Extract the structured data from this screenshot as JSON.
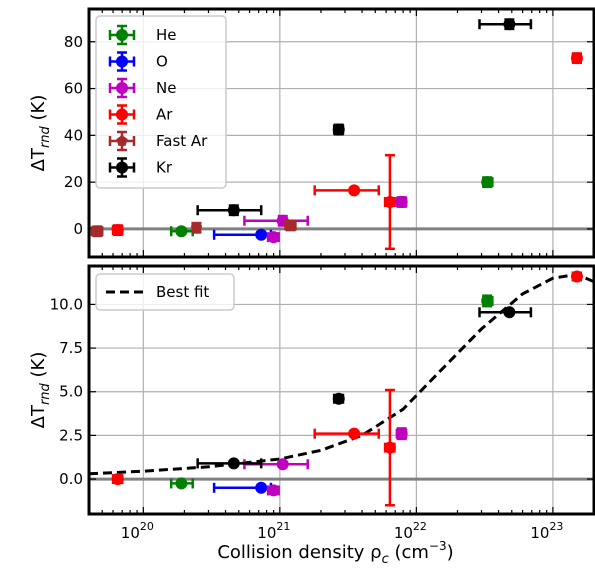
{
  "chart_data": [
    {
      "type": "scatter",
      "panel": "top",
      "xscale": "log",
      "xlim": [
        4e+19,
        2e+23
      ],
      "ylim": [
        -12,
        94
      ],
      "ylabel_base": "ΔT",
      "ylabel_sub": "rnd",
      "ylabel_unit": " (K)",
      "xlabel": "",
      "yticks": [
        0,
        20,
        40,
        60,
        80
      ],
      "grid": true,
      "legend": "top-left",
      "series": [
        {
          "name": "He",
          "color": "#008000",
          "marker": "circle",
          "points": [
            {
              "x": 1.9e+20,
              "y": -1,
              "xlo": 1.6e+20,
              "xhi": 2.3e+20,
              "yerr": 1
            },
            {
              "x": 3.3e+22,
              "y": 20,
              "xlo": 3.1e+22,
              "xhi": 3.6e+22,
              "yerr": 2
            }
          ]
        },
        {
          "name": "O",
          "color": "#0000ff",
          "marker": "circle",
          "points": [
            {
              "x": 7.3e+20,
              "y": -2.5,
              "xlo": 3.3e+20,
              "xhi": 8.6e+20,
              "yerr": 1
            }
          ]
        },
        {
          "name": "Ne",
          "color": "#bf00bf",
          "marker": "circle",
          "points": [
            {
              "x": 1.05e+21,
              "y": 3.5,
              "xlo": 5.5e+20,
              "xhi": 1.6e+21,
              "yerr": 2
            },
            {
              "x": 9e+20,
              "y": -3.5,
              "xlo": 8.2e+20,
              "xhi": 9.8e+20,
              "yerr": 1
            },
            {
              "x": 7.8e+21,
              "y": 11.5,
              "xlo": 7.2e+21,
              "xhi": 8.4e+21,
              "yerr": 2
            }
          ]
        },
        {
          "name": "Ar",
          "color": "#ff0000",
          "marker": "circle",
          "points": [
            {
              "x": 6.5e+19,
              "y": -0.5,
              "xlo": 6e+19,
              "xhi": 7e+19,
              "yerr": 2
            },
            {
              "x": 3.5e+21,
              "y": 16.5,
              "xlo": 1.8e+21,
              "xhi": 5.3e+21,
              "yerr": 1
            },
            {
              "x": 6.4e+21,
              "y": 11.5,
              "xlo": 5.9e+21,
              "xhi": 6.9e+21,
              "yerr": 20
            },
            {
              "x": 1.5e+23,
              "y": 73,
              "xlo": 1.4e+23,
              "xhi": 1.6e+23,
              "yerr": 2
            }
          ]
        },
        {
          "name": "Fast Ar",
          "color": "#a52a2a",
          "marker": "pentagon",
          "points": [
            {
              "x": 4.6e+19,
              "y": -1,
              "xlo": 4.2e+19,
              "xhi": 5e+19,
              "yerr": 2
            },
            {
              "x": 2.45e+20,
              "y": 0.5,
              "xlo": 2.3e+20,
              "xhi": 2.6e+20,
              "yerr": 2
            },
            {
              "x": 1.2e+21,
              "y": 1.5,
              "xlo": 1.1e+21,
              "xhi": 1.3e+21,
              "yerr": 2
            }
          ]
        },
        {
          "name": "Kr",
          "color": "#000000",
          "marker": "circle",
          "points": [
            {
              "x": 4.6e+20,
              "y": 8,
              "xlo": 2.5e+20,
              "xhi": 7.3e+20,
              "yerr": 2
            },
            {
              "x": 2.7e+21,
              "y": 42.5,
              "xlo": 2.5e+21,
              "xhi": 2.9e+21,
              "yerr": 2
            },
            {
              "x": 4.8e+22,
              "y": 87.5,
              "xlo": 2.9e+22,
              "xhi": 6.9e+22,
              "yerr": 2
            }
          ]
        }
      ]
    },
    {
      "type": "scatter",
      "panel": "bottom",
      "xscale": "log",
      "xlim": [
        4e+19,
        2e+23
      ],
      "ylim": [
        -2,
        12.2
      ],
      "ylabel_base": "ΔT",
      "ylabel_sub": "rnd",
      "ylabel_unit": " (K)",
      "xlabel_base": "Collision density ρ",
      "xlabel_sub": "c",
      "xlabel_unit": " (cm",
      "xlabel_sup": "−3",
      "xlabel_close": ")",
      "xticks": [
        {
          "value": 1e+20,
          "base": "10",
          "exp": "20"
        },
        {
          "value": 1e+21,
          "base": "10",
          "exp": "21"
        },
        {
          "value": 1e+22,
          "base": "10",
          "exp": "22"
        },
        {
          "value": 1e+23,
          "base": "10",
          "exp": "23"
        }
      ],
      "yticks": [
        0.0,
        2.5,
        5.0,
        7.5,
        10.0
      ],
      "grid": true,
      "legend": "top-left",
      "fit": {
        "name": "Best fit",
        "color": "#000000",
        "points": [
          [
            4e+19,
            0.3
          ],
          [
            1e+20,
            0.45
          ],
          [
            3e+20,
            0.7
          ],
          [
            1e+21,
            1.15
          ],
          [
            2e+21,
            1.65
          ],
          [
            4e+21,
            2.5
          ],
          [
            8e+21,
            4.0
          ],
          [
            1.5e+22,
            6.2
          ],
          [
            3e+22,
            8.6
          ],
          [
            6e+22,
            10.6
          ],
          [
            1e+23,
            11.5
          ],
          [
            1.5e+23,
            11.72
          ],
          [
            2e+23,
            11.3
          ]
        ]
      },
      "series": [
        {
          "name": "He",
          "color": "#008000",
          "marker": "circle",
          "points": [
            {
              "x": 1.9e+20,
              "y": -0.25,
              "xlo": 1.6e+20,
              "xhi": 2.3e+20,
              "yerr": 0.1
            },
            {
              "x": 3.3e+22,
              "y": 10.2,
              "xlo": 3.1e+22,
              "xhi": 3.6e+22,
              "yerr": 0.3
            }
          ]
        },
        {
          "name": "O",
          "color": "#0000ff",
          "marker": "circle",
          "points": [
            {
              "x": 7.3e+20,
              "y": -0.5,
              "xlo": 3.3e+20,
              "xhi": 8.6e+20,
              "yerr": 0.1
            }
          ]
        },
        {
          "name": "Ne",
          "color": "#bf00bf",
          "marker": "circle",
          "points": [
            {
              "x": 1.05e+21,
              "y": 0.85,
              "xlo": 5.5e+20,
              "xhi": 1.6e+21,
              "yerr": 0.1
            },
            {
              "x": 9e+20,
              "y": -0.65,
              "xlo": 8.2e+20,
              "xhi": 9.8e+20,
              "yerr": 0.2
            },
            {
              "x": 7.8e+21,
              "y": 2.6,
              "xlo": 7.2e+21,
              "xhi": 8.4e+21,
              "yerr": 0.3
            }
          ]
        },
        {
          "name": "Ar",
          "color": "#ff0000",
          "marker": "circle",
          "points": [
            {
              "x": 6.5e+19,
              "y": 0.0,
              "xlo": 6e+19,
              "xhi": 7e+19,
              "yerr": 0.2
            },
            {
              "x": 3.5e+21,
              "y": 2.6,
              "xlo": 1.8e+21,
              "xhi": 5.3e+21,
              "yerr": 0.1
            },
            {
              "x": 6.4e+21,
              "y": 1.8,
              "xlo": 5.9e+21,
              "xhi": 6.9e+21,
              "yerr": 3.3
            },
            {
              "x": 1.5e+23,
              "y": 11.6,
              "xlo": 1.4e+23,
              "xhi": 1.6e+23,
              "yerr": 0.2
            }
          ]
        },
        {
          "name": "Kr",
          "color": "#000000",
          "marker": "circle",
          "points": [
            {
              "x": 4.6e+20,
              "y": 0.9,
              "xlo": 2.5e+20,
              "xhi": 7.3e+20,
              "yerr": 0.1
            },
            {
              "x": 2.7e+21,
              "y": 4.6,
              "xlo": 2.5e+21,
              "xhi": 2.9e+21,
              "yerr": 0.2
            },
            {
              "x": 4.8e+22,
              "y": 9.55,
              "xlo": 2.9e+22,
              "xhi": 6.9e+22,
              "yerr": 0.1
            }
          ]
        }
      ]
    }
  ]
}
